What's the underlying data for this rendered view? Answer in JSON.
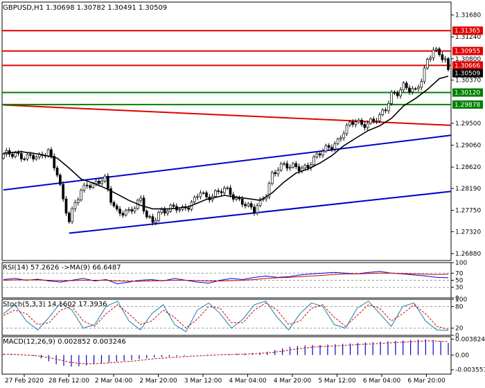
{
  "chart_data": {
    "type": "candlestick",
    "main": {
      "title": "GBPUSD,H1",
      "ohlc_text": "1.30698 1.30782 1.30491 1.30509",
      "ylim": [
        1.2674,
        1.3194
      ],
      "yticks": [
        "1.31680",
        "1.31240",
        "1.30800",
        "1.30370",
        "1.29500",
        "1.29060",
        "1.28620",
        "1.28190",
        "1.27750",
        "1.27320",
        "1.26880"
      ],
      "xtick_labels": [
        "27 Feb 2020",
        "28 Feb 12:00",
        "2 Mar 04:00",
        "2 Mar 20:00",
        "3 Mar 12:00",
        "4 Mar 04:00",
        "4 Mar 20:00",
        "5 Mar 12:00",
        "6 Mar 04:00",
        "6 Mar 20:00"
      ],
      "bar_count": 150,
      "close_path": [
        [
          0,
          1.2884
        ],
        [
          4,
          1.289
        ],
        [
          8,
          1.2883
        ],
        [
          12,
          1.2878
        ],
        [
          15,
          1.2898
        ],
        [
          18,
          1.2852
        ],
        [
          20,
          1.2792
        ],
        [
          22,
          1.275
        ],
        [
          24,
          1.279
        ],
        [
          26,
          1.2818
        ],
        [
          28,
          1.283
        ],
        [
          30,
          1.2823
        ],
        [
          32,
          1.283
        ],
        [
          34,
          1.2837
        ],
        [
          36,
          1.28
        ],
        [
          38,
          1.2775
        ],
        [
          40,
          1.277
        ],
        [
          42,
          1.2768
        ],
        [
          44,
          1.278
        ],
        [
          46,
          1.28
        ],
        [
          48,
          1.2766
        ],
        [
          50,
          1.2752
        ],
        [
          52,
          1.2765
        ],
        [
          54,
          1.277
        ],
        [
          56,
          1.2782
        ],
        [
          58,
          1.2785
        ],
        [
          60,
          1.2778
        ],
        [
          62,
          1.278
        ],
        [
          64,
          1.2792
        ],
        [
          66,
          1.2815
        ],
        [
          68,
          1.2802
        ],
        [
          70,
          1.2808
        ],
        [
          72,
          1.281
        ],
        [
          74,
          1.2815
        ],
        [
          76,
          1.2808
        ],
        [
          78,
          1.28
        ],
        [
          80,
          1.2795
        ],
        [
          82,
          1.2782
        ],
        [
          84,
          1.2772
        ],
        [
          86,
          1.279
        ],
        [
          88,
          1.281
        ],
        [
          90,
          1.285
        ],
        [
          92,
          1.286
        ],
        [
          94,
          1.2863
        ],
        [
          96,
          1.286
        ],
        [
          98,
          1.2865
        ],
        [
          100,
          1.2862
        ],
        [
          102,
          1.2865
        ],
        [
          104,
          1.2875
        ],
        [
          106,
          1.2888
        ],
        [
          108,
          1.29
        ],
        [
          110,
          1.2908
        ],
        [
          112,
          1.2915
        ],
        [
          114,
          1.2932
        ],
        [
          116,
          1.2945
        ],
        [
          118,
          1.2955
        ],
        [
          120,
          1.295
        ],
        [
          122,
          1.2953
        ],
        [
          124,
          1.2955
        ],
        [
          126,
          1.296
        ],
        [
          128,
          1.2978
        ],
        [
          130,
          1.301
        ],
        [
          132,
          1.3015
        ],
        [
          134,
          1.3025
        ],
        [
          136,
          1.3015
        ],
        [
          138,
          1.3012
        ],
        [
          140,
          1.304
        ],
        [
          142,
          1.308
        ],
        [
          144,
          1.31
        ],
        [
          146,
          1.3085
        ],
        [
          148,
          1.3075
        ],
        [
          149,
          1.3051
        ]
      ],
      "ma_path": [
        [
          0,
          1.289
        ],
        [
          6,
          1.2893
        ],
        [
          12,
          1.2888
        ],
        [
          18,
          1.288
        ],
        [
          22,
          1.286
        ],
        [
          26,
          1.2838
        ],
        [
          30,
          1.283
        ],
        [
          34,
          1.282
        ],
        [
          38,
          1.2808
        ],
        [
          42,
          1.2795
        ],
        [
          46,
          1.2785
        ],
        [
          50,
          1.2778
        ],
        [
          56,
          1.2778
        ],
        [
          62,
          1.2782
        ],
        [
          68,
          1.2797
        ],
        [
          74,
          1.2805
        ],
        [
          80,
          1.28
        ],
        [
          86,
          1.2795
        ],
        [
          90,
          1.281
        ],
        [
          94,
          1.2832
        ],
        [
          98,
          1.285
        ],
        [
          102,
          1.2858
        ],
        [
          106,
          1.287
        ],
        [
          110,
          1.2885
        ],
        [
          114,
          1.2905
        ],
        [
          118,
          1.292
        ],
        [
          122,
          1.2935
        ],
        [
          126,
          1.2945
        ],
        [
          130,
          1.296
        ],
        [
          134,
          1.2985
        ],
        [
          138,
          1.3
        ],
        [
          142,
          1.3018
        ],
        [
          146,
          1.304
        ],
        [
          149,
          1.3045
        ]
      ],
      "hlines": [
        {
          "value": 1.31365,
          "label": "1.31365",
          "color": "#e00000",
          "tag_bg": "#e00000",
          "tag_fg": "#ffffff"
        },
        {
          "value": 1.30955,
          "label": "1.30955",
          "color": "#e00000",
          "tag_bg": "#e00000",
          "tag_fg": "#ffffff"
        },
        {
          "value": 1.30666,
          "label": "1.30666",
          "color": "#e00000",
          "tag_bg": "#e00000",
          "tag_fg": "#ffffff"
        },
        {
          "value": 1.3012,
          "label": "1.30120",
          "color": "#008000",
          "tag_bg": "#008000",
          "tag_fg": "#ffffff"
        },
        {
          "value": 1.29878,
          "label": "1.29878",
          "color": "#008000",
          "tag_bg": "#008000",
          "tag_fg": "#ffffff"
        }
      ],
      "current_tag": {
        "value": 1.30509,
        "label": "1.30509",
        "bg": "#000000",
        "fg": "#ffffff"
      },
      "trendlines": [
        {
          "color": "#e00000",
          "points": [
            [
              0,
              1.2987
            ],
            [
              150,
              1.2946
            ]
          ]
        },
        {
          "color": "#0000cc",
          "points": [
            [
              0,
              1.2816
            ],
            [
              150,
              1.2926
            ]
          ]
        },
        {
          "color": "#0000cc",
          "points": [
            [
              22,
              1.2729
            ],
            [
              150,
              1.2813
            ]
          ]
        }
      ]
    },
    "rsi": {
      "label": "RSI(14) 57.2626  ->MA(9) 66.6487",
      "ylim": [
        0,
        100
      ],
      "yticks": [
        "100",
        "70",
        "50",
        "30",
        "0"
      ],
      "levels": [
        70,
        50,
        30
      ],
      "line_color": "#0000cc",
      "ma_color": "#cc0000",
      "values": [
        52,
        55,
        50,
        53,
        48,
        45,
        50,
        55,
        48,
        52,
        40,
        45,
        50,
        52,
        48,
        55,
        50,
        45,
        42,
        50,
        55,
        52,
        58,
        62,
        58,
        60,
        65,
        68,
        70,
        72,
        70,
        68,
        72,
        75,
        70,
        68,
        65,
        62,
        58,
        57
      ],
      "ma_values": [
        50,
        51,
        51,
        51,
        50,
        49,
        49,
        50,
        50,
        50,
        48,
        47,
        47,
        48,
        49,
        50,
        50,
        49,
        48,
        48,
        49,
        50,
        52,
        55,
        57,
        58,
        60,
        62,
        64,
        66,
        68,
        68,
        69,
        70,
        70,
        69,
        68,
        67,
        66,
        67
      ]
    },
    "stoch": {
      "label": "Stoch(5,3,3) 14.1602 17.3936",
      "ylim": [
        0,
        100
      ],
      "yticks": [
        "100",
        "80",
        "20",
        "0"
      ],
      "levels": [
        80,
        20
      ],
      "k_color": "#1a7fa8",
      "d_color": "#cc0000",
      "k_values": [
        60,
        85,
        40,
        15,
        50,
        90,
        70,
        20,
        30,
        80,
        95,
        40,
        15,
        60,
        85,
        30,
        10,
        70,
        90,
        60,
        20,
        45,
        85,
        95,
        50,
        15,
        60,
        90,
        80,
        30,
        20,
        75,
        95,
        60,
        25,
        80,
        90,
        40,
        15,
        14
      ],
      "d_values": [
        55,
        70,
        60,
        30,
        35,
        70,
        80,
        40,
        25,
        60,
        85,
        60,
        30,
        40,
        70,
        50,
        20,
        45,
        80,
        75,
        35,
        35,
        70,
        90,
        70,
        30,
        40,
        75,
        85,
        50,
        25,
        55,
        85,
        75,
        40,
        60,
        85,
        60,
        25,
        17
      ]
    },
    "macd": {
      "label": "MACD(12,26,9) 0.002852 0.003246",
      "ylim": [
        -0.0046,
        0.0044
      ],
      "yticks": [
        "0.003824",
        "0.00",
        "-0.003557"
      ],
      "bar_color": "#0000cc",
      "signal_color": "#cc0000",
      "hist": [
        0.0003,
        0.0002,
        0.0001,
        0.0,
        -0.0002,
        -0.0008,
        -0.0015,
        -0.0022,
        -0.0026,
        -0.0028,
        -0.0027,
        -0.0025,
        -0.0022,
        -0.002,
        -0.0018,
        -0.0016,
        -0.0014,
        -0.0012,
        -0.001,
        -0.0008,
        -0.0006,
        -0.0005,
        -0.0004,
        -0.0003,
        -0.0002,
        -0.0001,
        0.0,
        0.0001,
        0.0001,
        0.0002,
        0.0002,
        0.0003,
        0.0004,
        0.0005,
        0.0006,
        0.0008,
        0.0012,
        0.0016,
        0.002,
        0.0022,
        0.0023,
        0.0024,
        0.0024,
        0.0025,
        0.0026,
        0.0027,
        0.0028,
        0.0029,
        0.003,
        0.0031,
        0.0032,
        0.0033,
        0.0034,
        0.0035,
        0.0036,
        0.0037,
        0.0038,
        0.0036,
        0.0033,
        0.0029
      ],
      "signal": [
        0.0002,
        0.0002,
        0.0001,
        0.0,
        -0.0001,
        -0.0003,
        -0.0006,
        -0.001,
        -0.0014,
        -0.0018,
        -0.002,
        -0.0021,
        -0.0021,
        -0.002,
        -0.0019,
        -0.0018,
        -0.0016,
        -0.0015,
        -0.0013,
        -0.0011,
        -0.0009,
        -0.0008,
        -0.0006,
        -0.0005,
        -0.0004,
        -0.0003,
        -0.0002,
        -0.0001,
        0.0,
        0.0001,
        0.0001,
        0.0002,
        0.0002,
        0.0003,
        0.0004,
        0.0005,
        0.0007,
        0.0009,
        0.0012,
        0.0015,
        0.0017,
        0.0019,
        0.002,
        0.0021,
        0.0022,
        0.0023,
        0.0024,
        0.0025,
        0.0026,
        0.0027,
        0.0028,
        0.0029,
        0.003,
        0.0031,
        0.0032,
        0.0033,
        0.0034,
        0.0034,
        0.0033,
        0.0032
      ]
    }
  }
}
